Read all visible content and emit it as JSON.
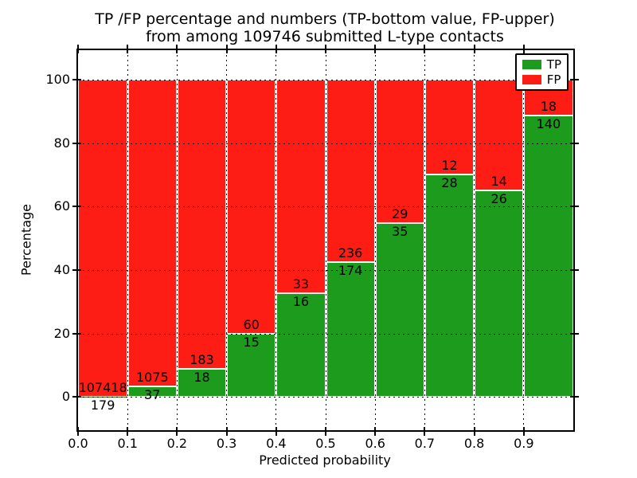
{
  "chart_data": {
    "type": "bar",
    "stacked": true,
    "normalized_to_percent": true,
    "title_lines": [
      "TP /FP percentage and numbers (TP-bottom value, FP-upper)",
      "from among 109746 submitted L-type contacts"
    ],
    "total_submitted": 109746,
    "xlabel": "Predicted probability",
    "ylabel": "Percentage",
    "x_bin_start": [
      0.0,
      0.1,
      0.2,
      0.3,
      0.4,
      0.5,
      0.6,
      0.7,
      0.8,
      0.9
    ],
    "bin_width": 0.1,
    "x_tick_labels": [
      "0.0",
      "0.1",
      "0.2",
      "0.3",
      "0.4",
      "0.5",
      "0.6",
      "0.7",
      "0.8",
      "0.9"
    ],
    "y_ticks": [
      0,
      20,
      40,
      60,
      80,
      100
    ],
    "xlim": [
      0.0,
      1.0
    ],
    "ylim": [
      -10.5,
      109.3
    ],
    "grid": true,
    "legend": {
      "position": "upper right",
      "entries": [
        {
          "label": "TP",
          "color": "#1c9b1c"
        },
        {
          "label": "FP",
          "color": "#fd1d15"
        }
      ]
    },
    "series": [
      {
        "name": "TP",
        "color": "#1c9b1c",
        "counts": [
          179,
          37,
          18,
          15,
          16,
          174,
          35,
          28,
          26,
          140
        ]
      },
      {
        "name": "FP",
        "color": "#fd1d15",
        "counts": [
          107418,
          1075,
          183,
          60,
          33,
          236,
          29,
          12,
          14,
          18
        ]
      }
    ],
    "tp_percent_of_bin": [
      0.17,
      3.33,
      8.96,
      20.0,
      32.65,
      42.44,
      54.69,
      70.0,
      65.0,
      88.61
    ],
    "colors": {
      "tp": "#1c9b1c",
      "fp": "#fd1d15",
      "grid": "#000000",
      "bar_edge": "#ffffff",
      "spine": "#000000"
    }
  }
}
